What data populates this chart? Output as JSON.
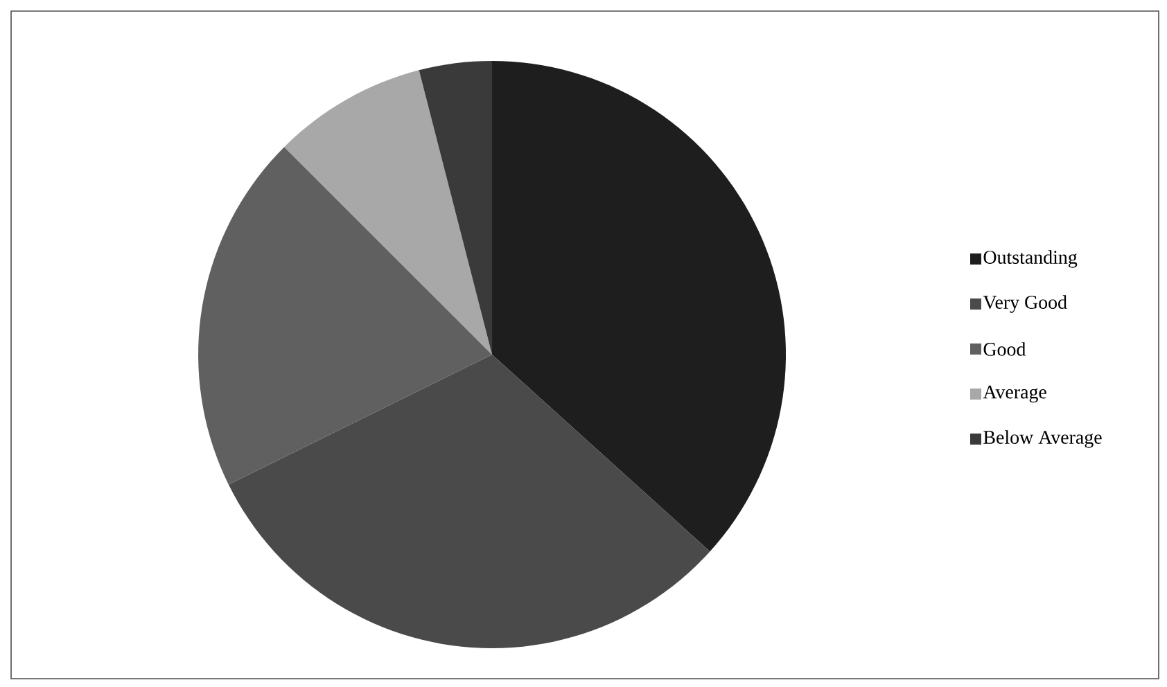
{
  "chart_data": {
    "type": "pie",
    "categories": [
      "Outstanding",
      "Very Good",
      "Good",
      "Average",
      "Below Average"
    ],
    "values": [
      36.7,
      31.0,
      19.8,
      8.5,
      4.0
    ],
    "colors": [
      "#1e1e1e",
      "#4a4a4a",
      "#606060",
      "#a8a8a8",
      "#3a3a3a"
    ],
    "legend": "right"
  }
}
